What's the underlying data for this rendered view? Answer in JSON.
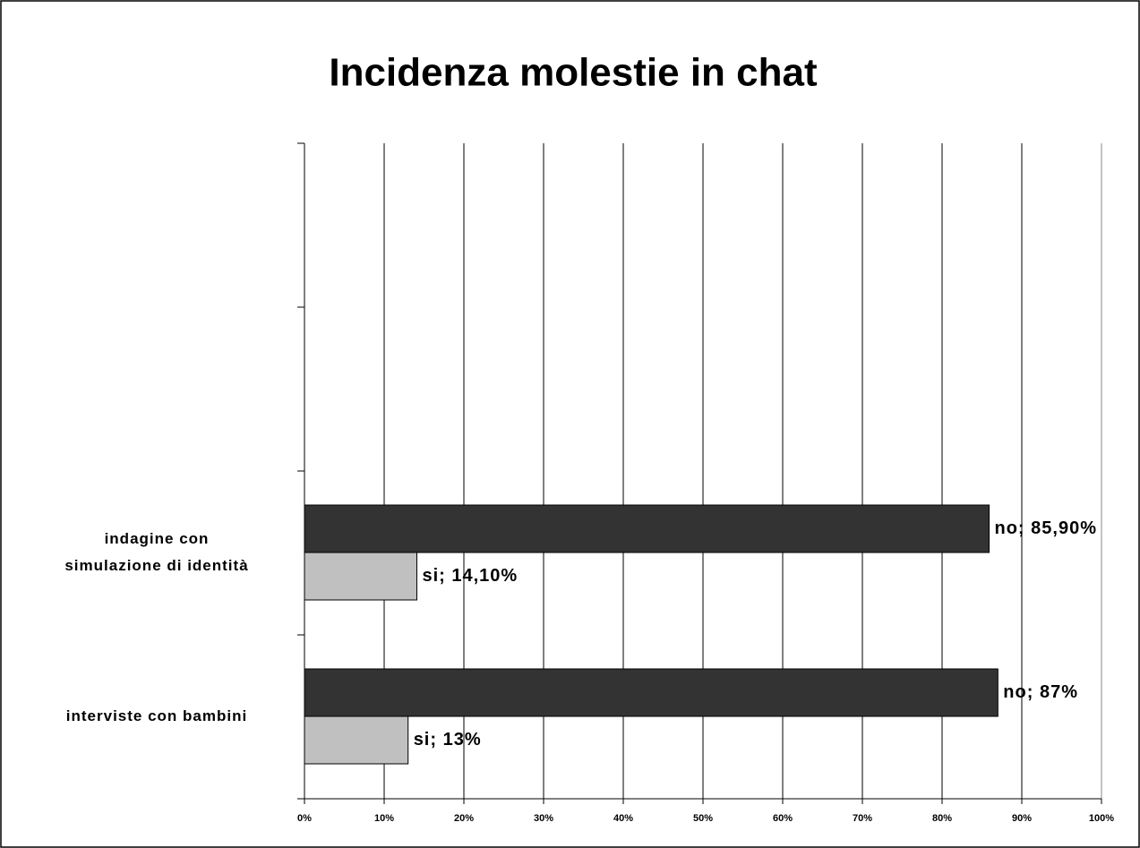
{
  "chart_data": {
    "type": "hbar",
    "title": "Incidenza molestie in chat",
    "categories": [
      null,
      null,
      "indagine con\nsimulazione di identità",
      "interviste con bambini"
    ],
    "series": [
      {
        "color": "#333333",
        "values": [
          null,
          null,
          85.9,
          87
        ],
        "value_labels": [
          null,
          null,
          "no; 85,90%",
          "no; 87%"
        ]
      },
      {
        "color": "#c0c0c0",
        "values": [
          null,
          null,
          14.1,
          13
        ],
        "value_labels": [
          null,
          null,
          "si; 14,10%",
          "si; 13%"
        ]
      }
    ],
    "xlim": [
      0,
      100
    ],
    "xticks": [
      {
        "value": 0,
        "label": "0%"
      },
      {
        "value": 10,
        "label": "10%"
      },
      {
        "value": 20,
        "label": "20%"
      },
      {
        "value": 30,
        "label": "30%"
      },
      {
        "value": 40,
        "label": "40%"
      },
      {
        "value": 50,
        "label": "50%"
      },
      {
        "value": 60,
        "label": "60%"
      },
      {
        "value": 70,
        "label": "70%"
      },
      {
        "value": 80,
        "label": "80%"
      },
      {
        "value": 90,
        "label": "90%"
      },
      {
        "value": 100,
        "label": "100%"
      }
    ],
    "grid": true
  }
}
